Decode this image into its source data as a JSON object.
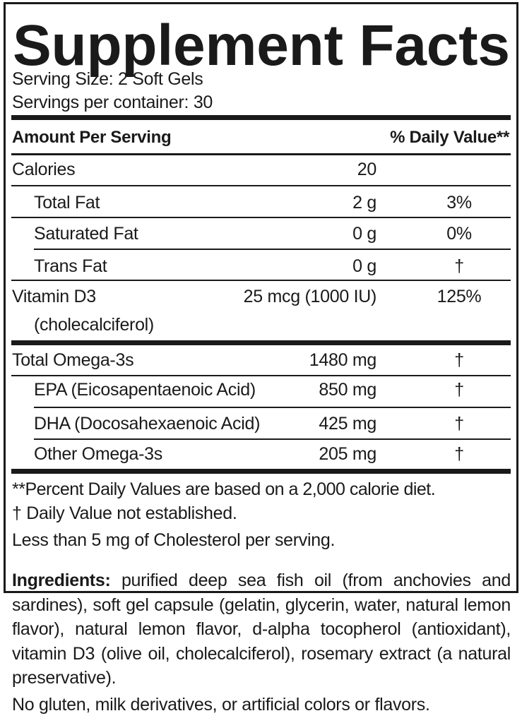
{
  "title": "Supplement Facts",
  "serving_size": "Serving Size: 2 Soft Gels",
  "servings_per_container": "Servings per container: 30",
  "header": {
    "amount": "Amount Per Serving",
    "dv": "% Daily Value**"
  },
  "rows": [
    {
      "name": "Calories",
      "amount": "20",
      "dv": ""
    },
    {
      "name": "Total Fat",
      "amount": "2 g",
      "dv": "3%"
    },
    {
      "name": "Saturated Fat",
      "amount": "0 g",
      "dv": "0%"
    },
    {
      "name": "Trans Fat",
      "amount": "0 g",
      "dv": "†"
    },
    {
      "name": "Vitamin D3",
      "sub": "(cholecalciferol)",
      "amount": "25 mcg (1000 IU)",
      "dv": "125%"
    },
    {
      "name": "Total Omega-3s",
      "amount": "1480 mg",
      "dv": "†"
    },
    {
      "name": "EPA (Eicosapentaenoic Acid)",
      "amount": "850 mg",
      "dv": "†"
    },
    {
      "name": "DHA (Docosahexaenoic Acid)",
      "amount": "425 mg",
      "dv": "†"
    },
    {
      "name": "Other Omega-3s",
      "amount": "205 mg",
      "dv": "†"
    }
  ],
  "footnotes": [
    "**Percent Daily Values are based on a 2,000 calorie diet.",
    "†  Daily Value not established.",
    "Less than 5 mg of Cholesterol per serving."
  ],
  "ingredients": {
    "label": "Ingredients:",
    "text": " purified deep sea fish oil (from anchovies and sardines), soft gel capsule (gelatin, glycerin, water, natural lemon flavor), natural lemon flavor, d-alpha tocopherol (antioxidant), vitamin D3 (olive oil, cholecalciferol), rosemary extract (a natural preservative)."
  },
  "allergen_note": "No gluten, milk derivatives, or artificial colors or flavors."
}
